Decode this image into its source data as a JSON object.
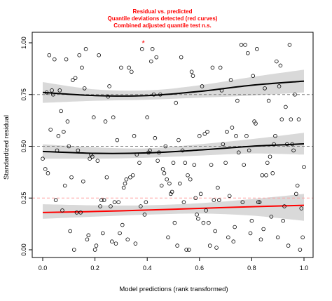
{
  "chart_data": {
    "type": "scatter",
    "title_lines": [
      "Residual vs. predicted",
      "Quantile deviations detected (red curves)",
      "Combined adjusted quantile test n.s."
    ],
    "xlabel": "Model predictions (rank transformed)",
    "ylabel": "Standardized residual",
    "xlim": [
      0,
      1
    ],
    "ylim": [
      0,
      1
    ],
    "x_ticks": [
      "0.0",
      "0.2",
      "0.4",
      "0.6",
      "0.8",
      "1.0"
    ],
    "y_ticks": [
      "0.00",
      "0.25",
      "0.50",
      "0.75",
      "1.00"
    ],
    "reference_lines": [
      0.25,
      0.5,
      0.75
    ],
    "colors": {
      "points": "#000000",
      "band": "#d9d9d9",
      "curve_ok": "#000000",
      "curve_deviating": "#ff0000",
      "reference": "#7f7f7f",
      "reference_deviating": "#ff9f9f",
      "outlier": "#ff0000"
    },
    "quantile_curves": [
      {
        "quantile": 0.25,
        "deviation": true,
        "x": [
          0.0,
          0.2,
          0.4,
          0.6,
          0.8,
          1.0
        ],
        "y": [
          0.18,
          0.185,
          0.192,
          0.2,
          0.208,
          0.215
        ],
        "band_lower": [
          0.15,
          0.16,
          0.17,
          0.175,
          0.165,
          0.14
        ],
        "band_upper": [
          0.22,
          0.215,
          0.215,
          0.225,
          0.245,
          0.27
        ]
      },
      {
        "quantile": 0.5,
        "deviation": false,
        "x": [
          0.0,
          0.2,
          0.4,
          0.6,
          0.8,
          1.0
        ],
        "y": [
          0.475,
          0.466,
          0.468,
          0.482,
          0.5,
          0.512
        ],
        "band_lower": [
          0.44,
          0.44,
          0.445,
          0.455,
          0.465,
          0.46
        ],
        "band_upper": [
          0.51,
          0.495,
          0.49,
          0.51,
          0.535,
          0.565
        ]
      },
      {
        "quantile": 0.75,
        "deviation": false,
        "x": [
          0.0,
          0.2,
          0.4,
          0.6,
          0.8,
          1.0
        ],
        "y": [
          0.76,
          0.745,
          0.745,
          0.765,
          0.795,
          0.815
        ],
        "band_lower": [
          0.71,
          0.72,
          0.725,
          0.735,
          0.745,
          0.76
        ],
        "band_upper": [
          0.81,
          0.775,
          0.77,
          0.795,
          0.835,
          0.87
        ]
      }
    ],
    "outliers": [
      {
        "x": 0.385,
        "y": 1.0
      }
    ],
    "points": [
      [
        0.0,
        0.44
      ],
      [
        0.01,
        0.39
      ],
      [
        0.015,
        0.76
      ],
      [
        0.02,
        0.37
      ],
      [
        0.025,
        0.94
      ],
      [
        0.03,
        0.58
      ],
      [
        0.035,
        0.77
      ],
      [
        0.04,
        0.75
      ],
      [
        0.045,
        0.92
      ],
      [
        0.05,
        0.24
      ],
      [
        0.055,
        0.48
      ],
      [
        0.06,
        0.55
      ],
      [
        0.065,
        0.77
      ],
      [
        0.07,
        0.67
      ],
      [
        0.075,
        0.19
      ],
      [
        0.08,
        0.57
      ],
      [
        0.085,
        0.31
      ],
      [
        0.09,
        0.92
      ],
      [
        0.095,
        0.62
      ],
      [
        0.1,
        0.5
      ],
      [
        0.105,
        0.09
      ],
      [
        0.11,
        0.35
      ],
      [
        0.115,
        0.82
      ],
      [
        0.12,
        0.0
      ],
      [
        0.125,
        0.83
      ],
      [
        0.13,
        0.18
      ],
      [
        0.135,
        0.48
      ],
      [
        0.14,
        0.94
      ],
      [
        0.145,
        0.18
      ],
      [
        0.15,
        0.88
      ],
      [
        0.155,
        0.33
      ],
      [
        0.16,
        0.78
      ],
      [
        0.165,
        0.97
      ],
      [
        0.17,
        0.05
      ],
      [
        0.175,
        0.07
      ],
      [
        0.18,
        0.44
      ],
      [
        0.185,
        0.46
      ],
      [
        0.19,
        0.45
      ],
      [
        0.195,
        0.64
      ],
      [
        0.2,
        0.0
      ],
      [
        0.205,
        0.02
      ],
      [
        0.21,
        0.43
      ],
      [
        0.215,
        0.94
      ],
      [
        0.22,
        0.21
      ],
      [
        0.225,
        0.24
      ],
      [
        0.23,
        0.08
      ],
      [
        0.235,
        0.24
      ],
      [
        0.24,
        0.62
      ],
      [
        0.245,
        0.35
      ],
      [
        0.25,
        0.74
      ],
      [
        0.255,
        0.79
      ],
      [
        0.26,
        0.21
      ],
      [
        0.265,
        0.04
      ],
      [
        0.27,
        0.64
      ],
      [
        0.275,
        0.23
      ],
      [
        0.28,
        0.03
      ],
      [
        0.285,
        0.53
      ],
      [
        0.29,
        0.23
      ],
      [
        0.295,
        0.08
      ],
      [
        0.3,
        0.88
      ],
      [
        0.305,
        0.12
      ],
      [
        0.31,
        0.3
      ],
      [
        0.315,
        0.32
      ],
      [
        0.32,
        0.34
      ],
      [
        0.325,
        0.05
      ],
      [
        0.33,
        0.88
      ],
      [
        0.335,
        0.35
      ],
      [
        0.34,
        0.86
      ],
      [
        0.345,
        0.36
      ],
      [
        0.35,
        0.55
      ],
      [
        0.355,
        0.03
      ],
      [
        0.36,
        0.46
      ],
      [
        0.37,
        0.42
      ],
      [
        0.375,
        0.21
      ],
      [
        0.38,
        0.97
      ],
      [
        0.39,
        0.17
      ],
      [
        0.395,
        0.23
      ],
      [
        0.4,
        0.64
      ],
      [
        0.405,
        0.47
      ],
      [
        0.41,
        0.48
      ],
      [
        0.415,
        0.91
      ],
      [
        0.42,
        0.97
      ],
      [
        0.425,
        0.75
      ],
      [
        0.43,
        0.54
      ],
      [
        0.435,
        0.93
      ],
      [
        0.44,
        0.43
      ],
      [
        0.445,
        0.47
      ],
      [
        0.45,
        0.75
      ],
      [
        0.455,
        0.31
      ],
      [
        0.46,
        0.39
      ],
      [
        0.465,
        0.37
      ],
      [
        0.47,
        0.5
      ],
      [
        0.475,
        0.34
      ],
      [
        0.48,
        0.06
      ],
      [
        0.485,
        0.32
      ],
      [
        0.49,
        0.27
      ],
      [
        0.495,
        0.28
      ],
      [
        0.5,
        0.42
      ],
      [
        0.505,
        0.13
      ],
      [
        0.51,
        0.71
      ],
      [
        0.515,
        0.02
      ],
      [
        0.52,
        0.53
      ],
      [
        0.525,
        0.32
      ],
      [
        0.53,
        0.93
      ],
      [
        0.535,
        0.48
      ],
      [
        0.54,
        0.23
      ],
      [
        0.545,
        0.42
      ],
      [
        0.55,
        0.0
      ],
      [
        0.555,
        0.36
      ],
      [
        0.56,
        0.0
      ],
      [
        0.565,
        0.34
      ],
      [
        0.57,
        0.86
      ],
      [
        0.575,
        0.84
      ],
      [
        0.58,
        0.41
      ],
      [
        0.585,
        0.25
      ],
      [
        0.59,
        0.17
      ],
      [
        0.595,
        0.15
      ],
      [
        0.6,
        0.55
      ],
      [
        0.605,
        0.27
      ],
      [
        0.61,
        0.79
      ],
      [
        0.615,
        0.13
      ],
      [
        0.62,
        0.56
      ],
      [
        0.625,
        0.19
      ],
      [
        0.63,
        0.57
      ],
      [
        0.635,
        0.13
      ],
      [
        0.64,
        0.02
      ],
      [
        0.645,
        0.41
      ],
      [
        0.65,
        0.88
      ],
      [
        0.655,
        0.24
      ],
      [
        0.66,
        0.09
      ],
      [
        0.665,
        0.01
      ],
      [
        0.67,
        0.3
      ],
      [
        0.675,
        0.24
      ],
      [
        0.68,
        0.88
      ],
      [
        0.685,
        0.77
      ],
      [
        0.69,
        0.51
      ],
      [
        0.7,
        0.42
      ],
      [
        0.705,
        0.57
      ],
      [
        0.71,
        0.06
      ],
      [
        0.715,
        0.26
      ],
      [
        0.72,
        0.82
      ],
      [
        0.725,
        0.59
      ],
      [
        0.73,
        0.04
      ],
      [
        0.735,
        0.11
      ],
      [
        0.74,
        0.55
      ],
      [
        0.745,
        0.72
      ],
      [
        0.75,
        0.47
      ],
      [
        0.76,
        0.99
      ],
      [
        0.765,
        0.23
      ],
      [
        0.77,
        0.41
      ],
      [
        0.775,
        0.99
      ],
      [
        0.78,
        0.55
      ],
      [
        0.785,
        0.95
      ],
      [
        0.79,
        0.48
      ],
      [
        0.795,
        0.08
      ],
      [
        0.8,
        0.14
      ],
      [
        0.805,
        0.84
      ],
      [
        0.81,
        0.62
      ],
      [
        0.815,
        0.61
      ],
      [
        0.82,
        0.97
      ],
      [
        0.825,
        0.23
      ],
      [
        0.83,
        0.23
      ],
      [
        0.835,
        0.05
      ],
      [
        0.84,
        0.36
      ],
      [
        0.845,
        0.1
      ],
      [
        0.85,
        0.78
      ],
      [
        0.855,
        0.36
      ],
      [
        0.86,
        0.42
      ],
      [
        0.865,
        0.72
      ],
      [
        0.87,
        0.45
      ],
      [
        0.875,
        0.16
      ],
      [
        0.88,
        0.37
      ],
      [
        0.885,
        0.51
      ],
      [
        0.89,
        0.55
      ],
      [
        0.895,
        0.91
      ],
      [
        0.9,
        0.06
      ],
      [
        0.905,
        0.79
      ],
      [
        0.91,
        0.89
      ],
      [
        0.915,
        0.63
      ],
      [
        0.92,
        0.14
      ],
      [
        0.925,
        0.21
      ],
      [
        0.93,
        0.69
      ],
      [
        0.935,
        0.51
      ],
      [
        0.94,
        0.02
      ],
      [
        0.945,
        0.99
      ],
      [
        0.95,
        0.63
      ],
      [
        0.955,
        0.51
      ],
      [
        0.96,
        0.48
      ],
      [
        0.965,
        0.75
      ],
      [
        0.97,
        0.27
      ],
      [
        0.975,
        0.31
      ],
      [
        0.98,
        0.63
      ],
      [
        0.985,
        0.0
      ],
      [
        0.99,
        0.2
      ],
      [
        0.995,
        0.06
      ],
      [
        1.0,
        0.4
      ]
    ]
  }
}
